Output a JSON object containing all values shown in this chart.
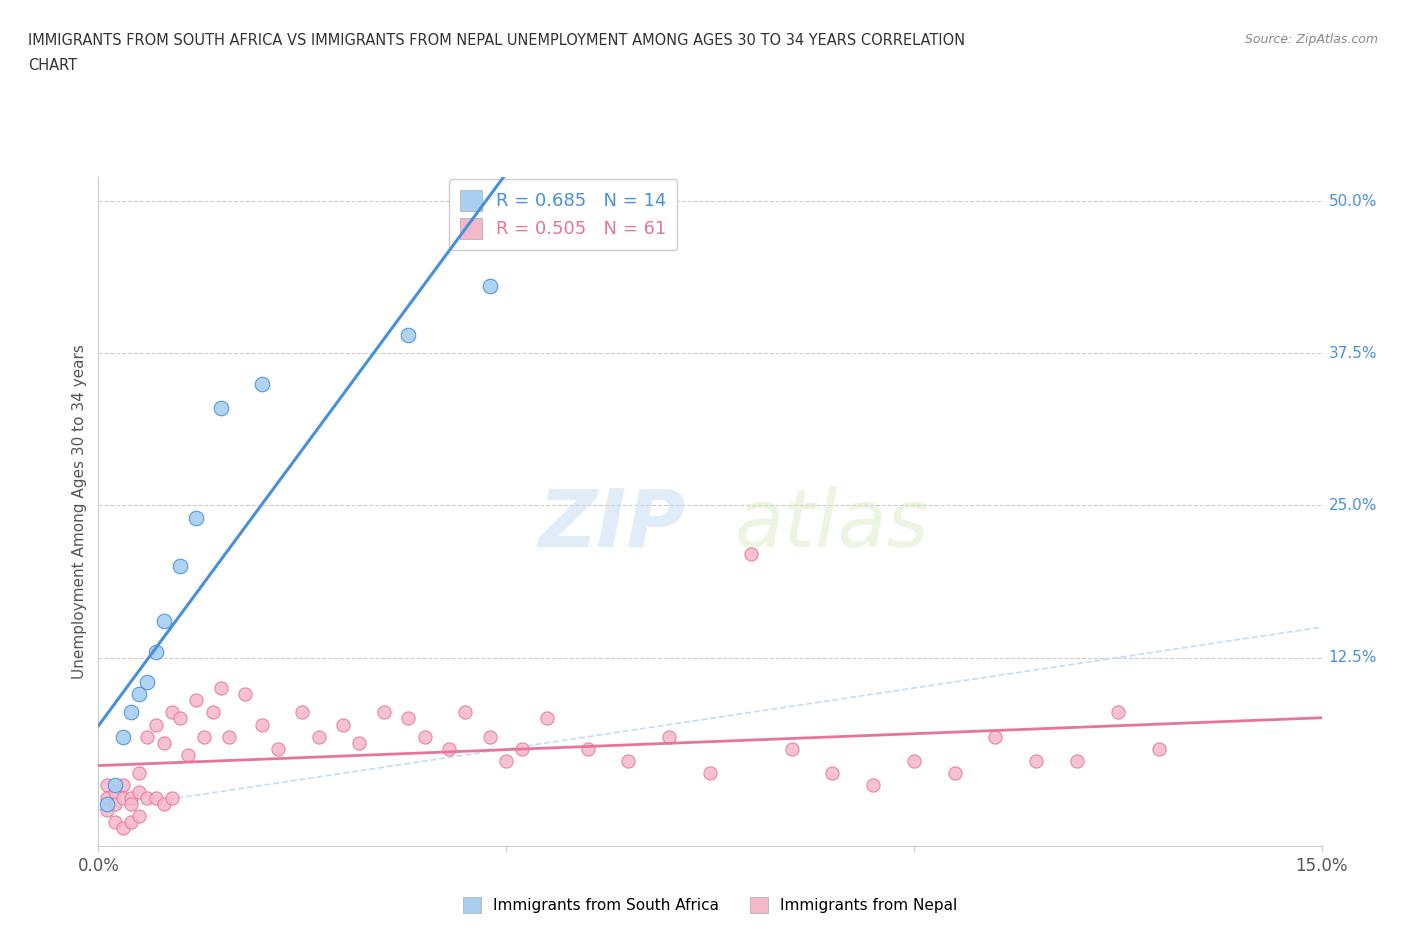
{
  "title_line1": "IMMIGRANTS FROM SOUTH AFRICA VS IMMIGRANTS FROM NEPAL UNEMPLOYMENT AMONG AGES 30 TO 34 YEARS CORRELATION",
  "title_line2": "CHART",
  "source": "Source: ZipAtlas.com",
  "ylabel": "Unemployment Among Ages 30 to 34 years",
  "ytick_labels": [
    "12.5%",
    "25.0%",
    "37.5%",
    "50.0%"
  ],
  "ytick_values": [
    0.125,
    0.25,
    0.375,
    0.5
  ],
  "xlim": [
    0,
    0.15
  ],
  "ylim": [
    -0.03,
    0.52
  ],
  "watermark_zip": "ZIP",
  "watermark_atlas": "atlas",
  "legend1_label": "R = 0.685   N = 14",
  "legend2_label": "R = 0.505   N = 61",
  "legend_label_sa": "Immigrants from South Africa",
  "legend_label_np": "Immigrants from Nepal",
  "color_sa": "#a8cff0",
  "color_np": "#f5b8cb",
  "color_sa_line": "#4a90d9",
  "color_np_line": "#e8749a",
  "color_diagonal": "#b8d4f0",
  "south_africa_x": [
    0.001,
    0.002,
    0.003,
    0.004,
    0.005,
    0.006,
    0.007,
    0.008,
    0.01,
    0.012,
    0.015,
    0.02,
    0.038,
    0.048
  ],
  "south_africa_y": [
    0.005,
    0.02,
    0.06,
    0.08,
    0.095,
    0.105,
    0.13,
    0.155,
    0.2,
    0.24,
    0.33,
    0.35,
    0.39,
    0.43
  ],
  "nepal_x": [
    0.001,
    0.001,
    0.001,
    0.002,
    0.002,
    0.002,
    0.003,
    0.003,
    0.003,
    0.004,
    0.004,
    0.004,
    0.005,
    0.005,
    0.005,
    0.006,
    0.006,
    0.007,
    0.007,
    0.008,
    0.008,
    0.009,
    0.009,
    0.01,
    0.011,
    0.012,
    0.013,
    0.014,
    0.015,
    0.016,
    0.018,
    0.02,
    0.022,
    0.025,
    0.027,
    0.03,
    0.032,
    0.035,
    0.038,
    0.04,
    0.043,
    0.045,
    0.048,
    0.05,
    0.052,
    0.055,
    0.06,
    0.065,
    0.07,
    0.075,
    0.08,
    0.085,
    0.09,
    0.095,
    0.1,
    0.105,
    0.11,
    0.115,
    0.12,
    0.125,
    0.13
  ],
  "nepal_y": [
    0.02,
    0.01,
    0.0,
    0.015,
    0.005,
    -0.01,
    0.02,
    0.01,
    -0.015,
    0.01,
    0.005,
    -0.01,
    0.03,
    0.015,
    -0.005,
    0.06,
    0.01,
    0.07,
    0.01,
    0.055,
    0.005,
    0.08,
    0.01,
    0.075,
    0.045,
    0.09,
    0.06,
    0.08,
    0.1,
    0.06,
    0.095,
    0.07,
    0.05,
    0.08,
    0.06,
    0.07,
    0.055,
    0.08,
    0.075,
    0.06,
    0.05,
    0.08,
    0.06,
    0.04,
    0.05,
    0.075,
    0.05,
    0.04,
    0.06,
    0.03,
    0.21,
    0.05,
    0.03,
    0.02,
    0.04,
    0.03,
    0.06,
    0.04,
    0.04,
    0.08,
    0.05
  ]
}
